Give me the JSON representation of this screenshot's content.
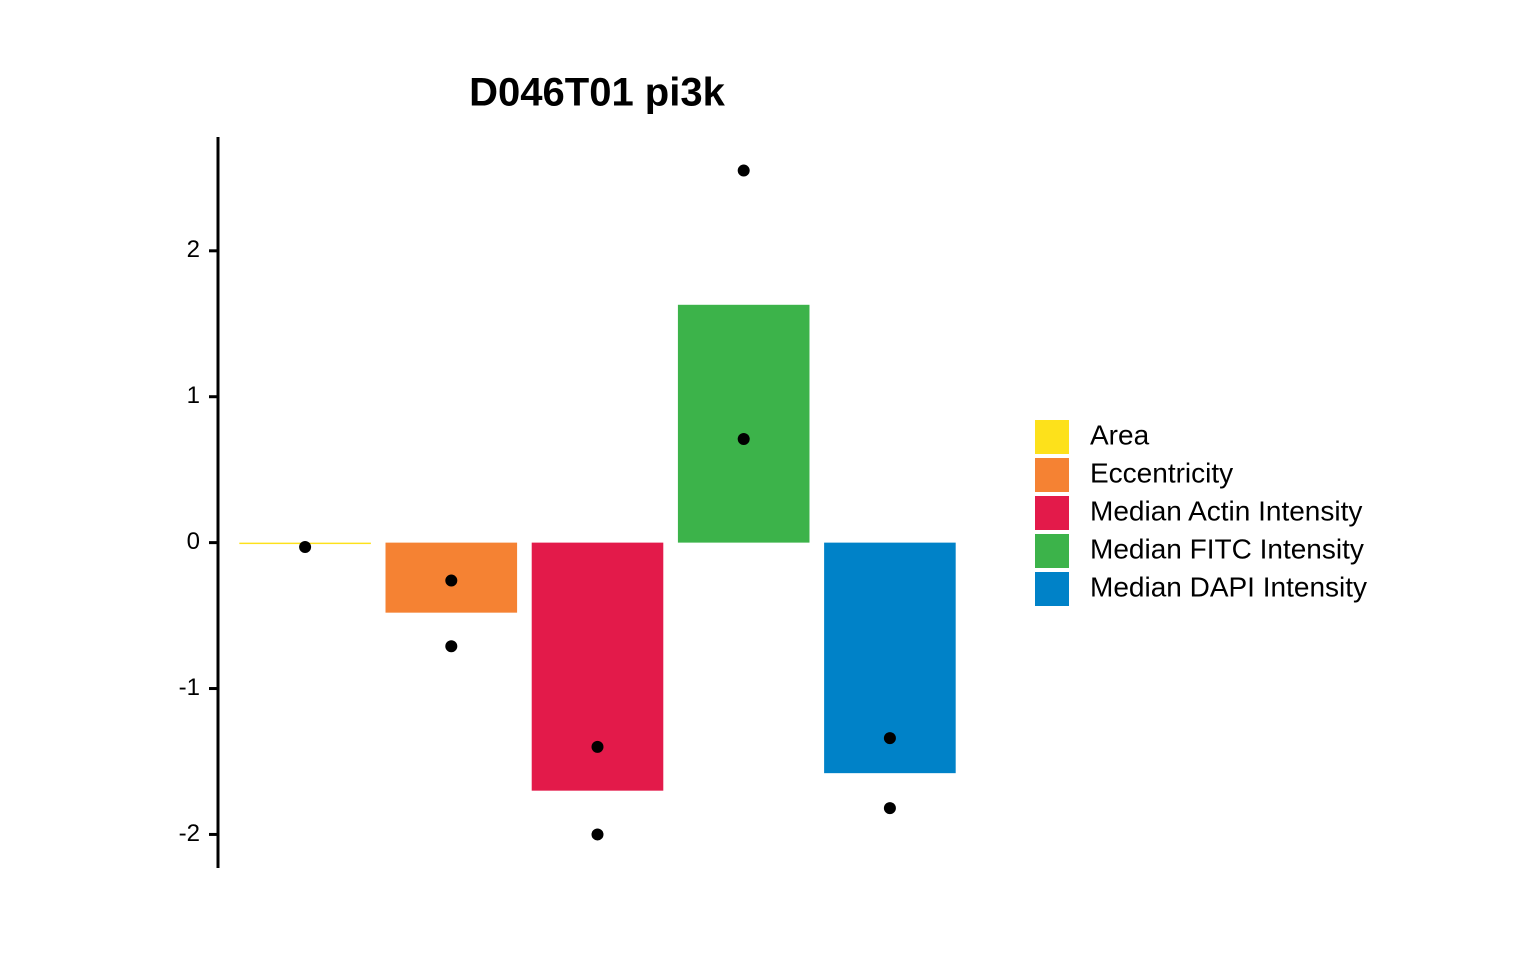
{
  "chart_data": {
    "type": "bar",
    "title": "D046T01 pi3k",
    "series": [
      {
        "name": "Area",
        "color": "#fde11b",
        "values": [
          -0.01
        ],
        "points": [
          -0.03
        ]
      },
      {
        "name": "Eccentricity",
        "color": "#f58233",
        "values": [
          -0.48
        ],
        "points": [
          -0.26,
          -0.71
        ]
      },
      {
        "name": "Median Actin Intensity",
        "color": "#e31a4a",
        "values": [
          -1.7
        ],
        "points": [
          -1.4,
          -2.0
        ]
      },
      {
        "name": "Median FITC Intensity",
        "color": "#3cb34a",
        "values": [
          1.63
        ],
        "points": [
          2.55,
          0.71
        ]
      },
      {
        "name": "Median DAPI Intensity",
        "color": "#0082c8",
        "values": [
          -1.58
        ],
        "points": [
          -1.34,
          -1.82
        ]
      }
    ],
    "ylim": [
      -2.23,
      2.78
    ],
    "yticks": [
      -2,
      -1,
      0,
      1,
      2
    ],
    "legend": "right"
  }
}
